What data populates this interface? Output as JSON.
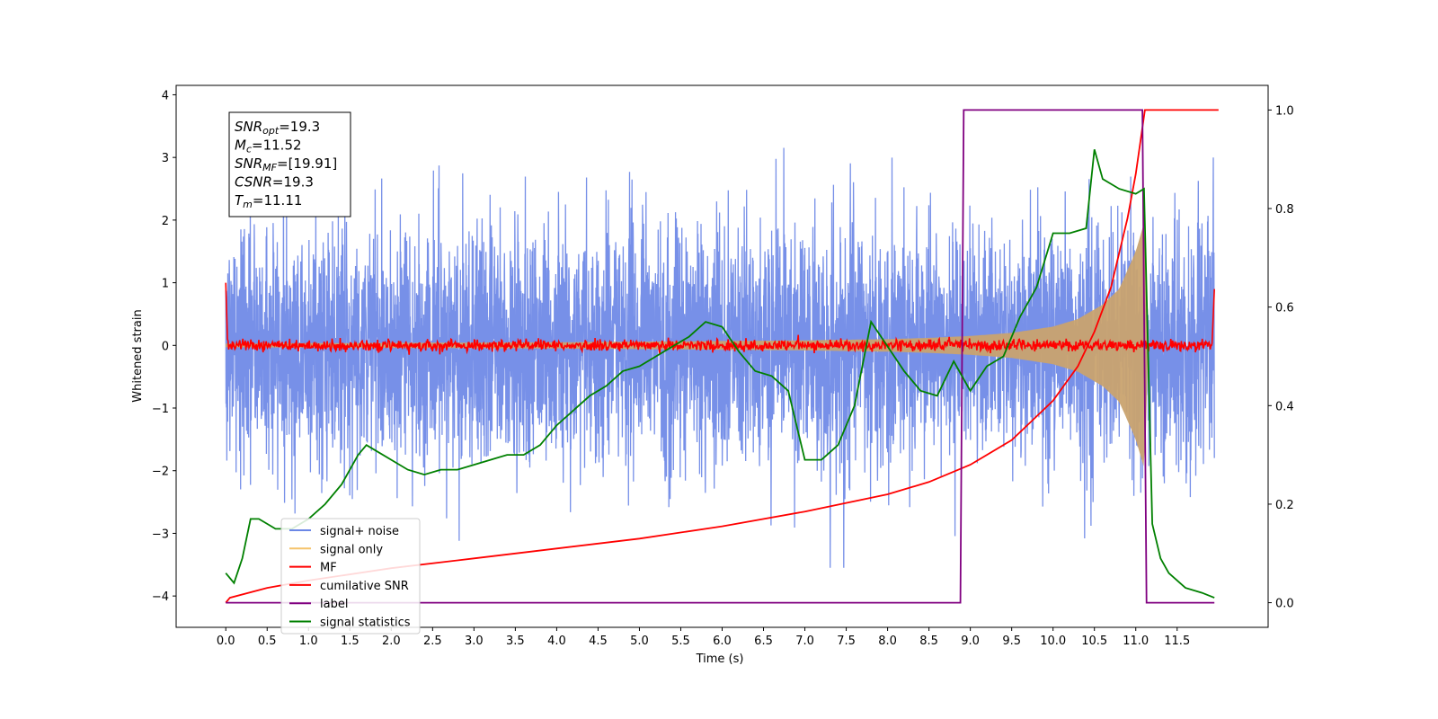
{
  "chart_data": {
    "type": "line",
    "xlabel": "Time (s)",
    "ylabel": "Whitened strain",
    "xlim": [
      -0.6,
      12.6
    ],
    "ylim": [
      -4.5,
      4.15
    ],
    "y2lim": [
      -0.05,
      1.05
    ],
    "x_ticks": [
      "0.0",
      "0.5",
      "1.0",
      "1.5",
      "2.0",
      "2.5",
      "3.0",
      "3.5",
      "4.0",
      "4.5",
      "5.0",
      "5.5",
      "6.0",
      "6.5",
      "7.0",
      "7.5",
      "8.0",
      "8.5",
      "9.0",
      "9.5",
      "10.0",
      "10.5",
      "11.0",
      "11.5"
    ],
    "y_ticks": [
      -4,
      -3,
      -2,
      -1,
      0,
      1,
      2,
      3,
      4
    ],
    "y2_ticks": [
      "0.0",
      "0.2",
      "0.4",
      "0.6",
      "0.8",
      "1.0"
    ],
    "grid": false,
    "legend_position": "lower-left",
    "info_box": {
      "lines": [
        {
          "sym": "SNR",
          "sub": "opt",
          "value": "=19.3"
        },
        {
          "sym": "M",
          "sub": "c",
          "value": "=11.52"
        },
        {
          "sym": "SNR",
          "sub": "MF",
          "value": "=[19.91]"
        },
        {
          "sym": "CSNR",
          "sub": "",
          "value": "=19.3"
        },
        {
          "sym": "T",
          "sub": "m",
          "value": "=11.11"
        }
      ]
    },
    "series": [
      {
        "name": "signal+ noise",
        "color": "#6b87e6",
        "axis": "left",
        "description_values": {
          "x_range": [
            0.0,
            12.0
          ],
          "amplitude_std": 1.0
        }
      },
      {
        "name": "signal only",
        "color": "#f6c36a",
        "axis": "left",
        "envelope": {
          "x": [
            0.0,
            2.0,
            4.0,
            6.0,
            7.0,
            8.0,
            8.5,
            9.0,
            9.5,
            10.0,
            10.3,
            10.6,
            10.8,
            11.0,
            11.11,
            11.15
          ],
          "amp": [
            0.03,
            0.04,
            0.05,
            0.07,
            0.08,
            0.1,
            0.12,
            0.15,
            0.2,
            0.3,
            0.42,
            0.65,
            0.9,
            1.5,
            2.0,
            0.0
          ]
        }
      },
      {
        "name": "MF",
        "color": "#ff0000",
        "axis": "left",
        "values": {
          "start": 1.0,
          "end": 0.9,
          "noise": 0.05
        }
      },
      {
        "name": "cumilative SNR",
        "color": "#ff0000",
        "axis": "right",
        "x": [
          0.0,
          0.05,
          0.5,
          1.0,
          2.0,
          3.0,
          4.0,
          5.0,
          6.0,
          7.0,
          8.0,
          8.5,
          9.0,
          9.5,
          10.0,
          10.3,
          10.5,
          10.7,
          10.9,
          11.0,
          11.11,
          11.2,
          12.0
        ],
        "y": [
          0.0,
          0.01,
          0.03,
          0.045,
          0.07,
          0.09,
          0.11,
          0.13,
          0.155,
          0.185,
          0.22,
          0.245,
          0.28,
          0.33,
          0.41,
          0.48,
          0.55,
          0.64,
          0.78,
          0.87,
          1.0,
          1.0,
          1.0
        ]
      },
      {
        "name": "label",
        "color": "#800080",
        "axis": "right",
        "x": [
          0.0,
          8.88,
          8.92,
          11.08,
          11.13,
          11.95
        ],
        "y": [
          0.0,
          0.0,
          1.0,
          1.0,
          0.0,
          0.0
        ]
      },
      {
        "name": "signal statistics",
        "color": "#008000",
        "axis": "right",
        "x": [
          0.0,
          0.1,
          0.2,
          0.3,
          0.4,
          0.5,
          0.6,
          0.8,
          1.0,
          1.2,
          1.4,
          1.6,
          1.7,
          1.8,
          2.0,
          2.2,
          2.4,
          2.6,
          2.8,
          3.0,
          3.2,
          3.4,
          3.6,
          3.8,
          4.0,
          4.2,
          4.4,
          4.6,
          4.8,
          5.0,
          5.2,
          5.4,
          5.6,
          5.8,
          6.0,
          6.2,
          6.4,
          6.6,
          6.8,
          7.0,
          7.2,
          7.4,
          7.6,
          7.8,
          8.0,
          8.2,
          8.4,
          8.6,
          8.8,
          9.0,
          9.2,
          9.4,
          9.6,
          9.8,
          10.0,
          10.2,
          10.4,
          10.5,
          10.6,
          10.8,
          11.0,
          11.1,
          11.2,
          11.3,
          11.4,
          11.6,
          11.8,
          11.95
        ],
        "y": [
          0.06,
          0.04,
          0.09,
          0.17,
          0.17,
          0.16,
          0.15,
          0.15,
          0.17,
          0.2,
          0.24,
          0.3,
          0.32,
          0.31,
          0.29,
          0.27,
          0.26,
          0.27,
          0.27,
          0.28,
          0.29,
          0.3,
          0.3,
          0.32,
          0.36,
          0.39,
          0.42,
          0.44,
          0.47,
          0.48,
          0.5,
          0.52,
          0.54,
          0.57,
          0.56,
          0.51,
          0.47,
          0.46,
          0.43,
          0.29,
          0.29,
          0.32,
          0.4,
          0.57,
          0.52,
          0.47,
          0.43,
          0.42,
          0.49,
          0.43,
          0.48,
          0.5,
          0.58,
          0.64,
          0.75,
          0.75,
          0.76,
          0.92,
          0.86,
          0.84,
          0.83,
          0.84,
          0.16,
          0.09,
          0.06,
          0.03,
          0.02,
          0.01
        ]
      }
    ]
  }
}
